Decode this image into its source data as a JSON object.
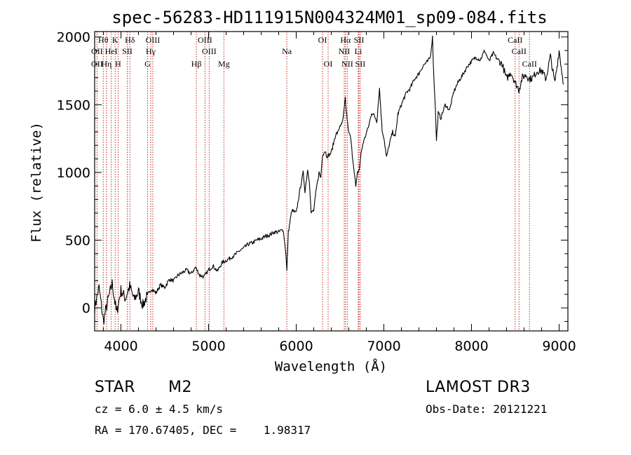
{
  "chart_data": {
    "type": "line",
    "title": "spec-56283-HD111915N004324M01_sp09-084.fits",
    "xlabel": "Wavelength (Å)",
    "ylabel": "Flux (relative)",
    "xlim": [
      3700,
      9100
    ],
    "ylim": [
      -170,
      2040
    ],
    "xticks": [
      4000,
      5000,
      6000,
      7000,
      8000,
      9000
    ],
    "xtick_labels": [
      "4000",
      "5000",
      "6000",
      "7000",
      "8000",
      "9000"
    ],
    "yticks": [
      0,
      500,
      1000,
      1500,
      2000
    ],
    "ytick_labels": [
      "0",
      "500",
      "1000",
      "1500",
      "2000"
    ],
    "grid": false,
    "series": [
      {
        "x": [
          3700,
          3750,
          3800,
          3850,
          3900,
          3950,
          4000,
          4050,
          4100,
          4150,
          4200,
          4250,
          4300,
          4350,
          4400,
          4450,
          4500,
          4550,
          4600,
          4650,
          4700,
          4750,
          4800,
          4850,
          4900,
          4950,
          5000,
          5050,
          5100,
          5150,
          5200,
          5250,
          5300,
          5350,
          5400,
          5450,
          5500,
          5550,
          5600,
          5650,
          5700,
          5750,
          5800,
          5850,
          5880,
          5893,
          5910,
          5950,
          6000,
          6050,
          6080,
          6100,
          6130,
          6150,
          6170,
          6200,
          6230,
          6260,
          6280,
          6300,
          6330,
          6350,
          6380,
          6400,
          6420,
          6450,
          6480,
          6500,
          6520,
          6540,
          6560,
          6565,
          6580,
          6600,
          6620,
          6640,
          6660,
          6680,
          6700,
          6720,
          6740,
          6760,
          6780,
          6800,
          6830,
          6860,
          6890,
          6920,
          6950,
          6980,
          7000,
          7030,
          7060,
          7100,
          7130,
          7160,
          7200,
          7230,
          7260,
          7300,
          7350,
          7400,
          7450,
          7500,
          7530,
          7555,
          7570,
          7585,
          7600,
          7620,
          7650,
          7700,
          7750,
          7800,
          7850,
          7900,
          7950,
          8000,
          8050,
          8100,
          8150,
          8200,
          8250,
          8300,
          8350,
          8400,
          8450,
          8500,
          8542,
          8580,
          8620,
          8662,
          8700,
          8750,
          8800,
          8850,
          8900,
          8950,
          9000,
          9050
        ],
        "y": [
          0,
          150,
          -100,
          50,
          180,
          -40,
          130,
          70,
          160,
          60,
          120,
          20,
          90,
          140,
          110,
          170,
          150,
          210,
          200,
          240,
          260,
          280,
          250,
          300,
          240,
          230,
          280,
          310,
          270,
          330,
          350,
          370,
          390,
          420,
          440,
          470,
          480,
          500,
          510,
          530,
          540,
          560,
          560,
          580,
          420,
          270,
          560,
          720,
          700,
          900,
          1000,
          860,
          1020,
          940,
          700,
          720,
          880,
          1000,
          960,
          1130,
          1160,
          1120,
          1130,
          1150,
          1200,
          1280,
          1300,
          1350,
          1350,
          1420,
          1550,
          1490,
          1400,
          1290,
          1260,
          1130,
          1020,
          890,
          1000,
          1020,
          1140,
          1210,
          1250,
          1290,
          1350,
          1440,
          1420,
          1380,
          1620,
          1310,
          1260,
          1110,
          1200,
          1300,
          1260,
          1430,
          1500,
          1550,
          1590,
          1620,
          1690,
          1730,
          1790,
          1820,
          1850,
          2000,
          1700,
          1520,
          1230,
          1440,
          1400,
          1500,
          1460,
          1600,
          1670,
          1720,
          1780,
          1820,
          1850,
          1830,
          1900,
          1820,
          1880,
          1830,
          1800,
          1690,
          1740,
          1660,
          1610,
          1700,
          1720,
          1690,
          1700,
          1750,
          1750,
          1690,
          1860,
          1660,
          1900,
          1650
        ]
      }
    ],
    "line_annotations": [
      {
        "label": "Hθ",
        "x": 3798,
        "row": 0
      },
      {
        "label": "K",
        "x": 3934,
        "row": 0
      },
      {
        "label": "Hδ",
        "x": 4102,
        "row": 0
      },
      {
        "label": "OII",
        "x": 3727,
        "row": 1
      },
      {
        "label": "HeI",
        "x": 3889,
        "row": 1
      },
      {
        "label": "SII",
        "x": 4072,
        "row": 1
      },
      {
        "label": "OIII",
        "x": 4363,
        "row": 0
      },
      {
        "label": "Hγ",
        "x": 4340,
        "row": 1
      },
      {
        "label": "OIII",
        "x": 4959,
        "row": 0
      },
      {
        "label": "OIII",
        "x": 5007,
        "row": 1
      },
      {
        "label": "Na",
        "x": 5893,
        "row": 1
      },
      {
        "label": "OI",
        "x": 6300,
        "row": 0
      },
      {
        "label": "Hα",
        "x": 6563,
        "row": 0
      },
      {
        "label": "SII",
        "x": 6716,
        "row": 0
      },
      {
        "label": "NII",
        "x": 6548,
        "row": 1
      },
      {
        "label": "Li",
        "x": 6708,
        "row": 1
      },
      {
        "label": "CaII",
        "x": 8498,
        "row": 0
      },
      {
        "label": "CaII",
        "x": 8542,
        "row": 1
      },
      {
        "label": "OII",
        "x": 3727,
        "row": 2
      },
      {
        "label": "Hη",
        "x": 3835,
        "row": 2
      },
      {
        "label": "H",
        "x": 3968,
        "row": 2
      },
      {
        "label": "G",
        "x": 4304,
        "row": 2
      },
      {
        "label": "Hβ",
        "x": 4861,
        "row": 2
      },
      {
        "label": "Mg",
        "x": 5175,
        "row": 2
      },
      {
        "label": "OI",
        "x": 6364,
        "row": 2
      },
      {
        "label": "NII",
        "x": 6583,
        "row": 2
      },
      {
        "label": "SII",
        "x": 6731,
        "row": 2
      },
      {
        "label": "CaII",
        "x": 8662,
        "row": 2
      }
    ],
    "marker_lines_x": [
      3727,
      3798,
      3835,
      3889,
      3934,
      3968,
      4072,
      4102,
      4304,
      4340,
      4363,
      4861,
      4959,
      5007,
      5175,
      5893,
      6300,
      6364,
      6548,
      6563,
      6583,
      6708,
      6716,
      6731,
      8498,
      8542,
      8662
    ],
    "colors": {
      "spectrum": "#000000",
      "markers": "#c0281e",
      "axes": "#000000"
    }
  },
  "info": {
    "object_class": "STAR",
    "subclass": "M2",
    "survey": "LAMOST DR3",
    "cz": "cz = 6.0 ± 4.5 km/s",
    "obs_date": "Obs-Date: 20121221",
    "coords": "RA = 170.67405, DEC =    1.98317"
  }
}
